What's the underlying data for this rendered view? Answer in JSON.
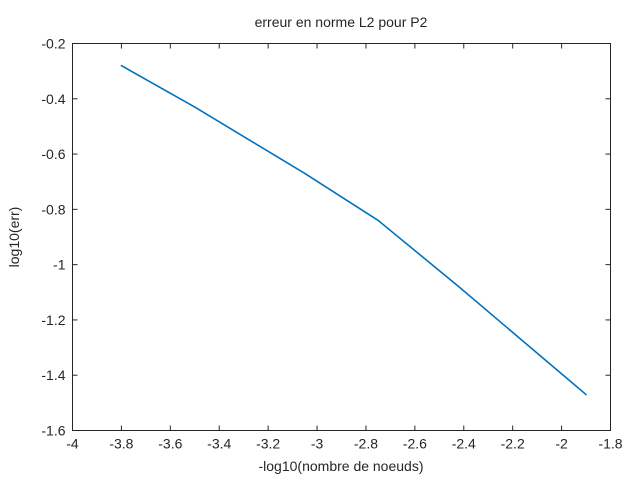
{
  "chart_data": {
    "type": "line",
    "title": "erreur en norme L2 pour P2",
    "xlabel": "-log10(nombre de noeuds)",
    "ylabel": "log10(err)",
    "xlim": [
      -4,
      -1.8
    ],
    "ylim": [
      -1.6,
      -0.2
    ],
    "xticks": [
      -4,
      -3.8,
      -3.6,
      -3.4,
      -3.2,
      -3,
      -2.8,
      -2.6,
      -2.4,
      -2.2,
      -2,
      -1.8
    ],
    "xtick_labels": [
      "-4",
      "-3.8",
      "-3.6",
      "-3.4",
      "-3.2",
      "-3",
      "-2.8",
      "-2.6",
      "-2.4",
      "-2.2",
      "-2",
      "-1.8"
    ],
    "yticks": [
      -1.6,
      -1.4,
      -1.2,
      -1,
      -0.8,
      -0.6,
      -0.4,
      -0.2
    ],
    "ytick_labels": [
      "-1.6",
      "-1.4",
      "-1.2",
      "-1",
      "-0.8",
      "-0.6",
      "-0.4",
      "-0.2"
    ],
    "grid": false,
    "series": [
      {
        "color": "#0072bd",
        "x": [
          -3.8,
          -3.5,
          -3.05,
          -2.75,
          -2.42,
          -1.9
        ],
        "y": [
          -0.28,
          -0.43,
          -0.67,
          -0.84,
          -1.08,
          -1.47
        ]
      }
    ]
  }
}
